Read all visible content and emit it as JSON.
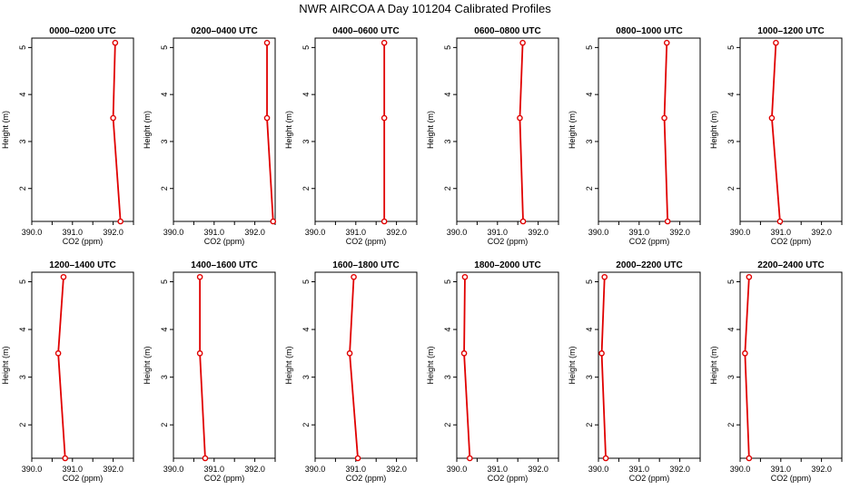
{
  "page": {
    "title": "NWR AIRCOA A  Day 101204  Calibrated Profiles"
  },
  "colors": {
    "series": "#e00000",
    "axis": "#000000",
    "background": "#ffffff"
  },
  "chart_data": [
    {
      "type": "line",
      "title": "0000–0200 UTC",
      "xlabel": "CO2 (ppm)",
      "ylabel": "Height (m)",
      "xlim": [
        390.0,
        392.5
      ],
      "ylim": [
        1.3,
        5.2
      ],
      "xticks": [
        "390.0",
        "391.0",
        "392.0"
      ],
      "yticks": [
        "2",
        "3",
        "4",
        "5"
      ],
      "grid": false,
      "series": [
        {
          "name": "profile",
          "co2": [
            392.18,
            392.0,
            392.05
          ],
          "height": [
            1.3,
            3.5,
            5.1
          ]
        }
      ]
    },
    {
      "type": "line",
      "title": "0200–0400 UTC",
      "xlabel": "CO2 (ppm)",
      "ylabel": "Height (m)",
      "xlim": [
        390.0,
        392.5
      ],
      "ylim": [
        1.3,
        5.2
      ],
      "xticks": [
        "390.0",
        "391.0",
        "392.0"
      ],
      "yticks": [
        "2",
        "3",
        "4",
        "5"
      ],
      "grid": false,
      "series": [
        {
          "name": "profile",
          "co2": [
            392.45,
            392.3,
            392.3
          ],
          "height": [
            1.3,
            3.5,
            5.1
          ]
        }
      ]
    },
    {
      "type": "line",
      "title": "0400–0600 UTC",
      "xlabel": "CO2 (ppm)",
      "ylabel": "Height (m)",
      "xlim": [
        390.0,
        392.5
      ],
      "ylim": [
        1.3,
        5.2
      ],
      "xticks": [
        "390.0",
        "391.0",
        "392.0"
      ],
      "yticks": [
        "2",
        "3",
        "4",
        "5"
      ],
      "grid": false,
      "series": [
        {
          "name": "profile",
          "co2": [
            391.7,
            391.7,
            391.7
          ],
          "height": [
            1.3,
            3.5,
            5.1
          ]
        }
      ]
    },
    {
      "type": "line",
      "title": "0600–0800 UTC",
      "xlabel": "CO2 (ppm)",
      "ylabel": "Height (m)",
      "xlim": [
        390.0,
        392.5
      ],
      "ylim": [
        1.3,
        5.2
      ],
      "xticks": [
        "390.0",
        "391.0",
        "392.0"
      ],
      "yticks": [
        "2",
        "3",
        "4",
        "5"
      ],
      "grid": false,
      "series": [
        {
          "name": "profile",
          "co2": [
            391.63,
            391.55,
            391.62
          ],
          "height": [
            1.3,
            3.5,
            5.1
          ]
        }
      ]
    },
    {
      "type": "line",
      "title": "0800–1000 UTC",
      "xlabel": "CO2 (ppm)",
      "ylabel": "Height (m)",
      "xlim": [
        390.0,
        392.5
      ],
      "ylim": [
        1.3,
        5.2
      ],
      "xticks": [
        "390.0",
        "391.0",
        "392.0"
      ],
      "yticks": [
        "2",
        "3",
        "4",
        "5"
      ],
      "grid": false,
      "series": [
        {
          "name": "profile",
          "co2": [
            391.7,
            391.62,
            391.68
          ],
          "height": [
            1.3,
            3.5,
            5.1
          ]
        }
      ]
    },
    {
      "type": "line",
      "title": "1000–1200 UTC",
      "xlabel": "CO2 (ppm)",
      "ylabel": "Height (m)",
      "xlim": [
        390.0,
        392.5
      ],
      "ylim": [
        1.3,
        5.2
      ],
      "xticks": [
        "390.0",
        "391.0",
        "392.0"
      ],
      "yticks": [
        "2",
        "3",
        "4",
        "5"
      ],
      "grid": false,
      "series": [
        {
          "name": "profile",
          "co2": [
            390.98,
            390.78,
            390.88
          ],
          "height": [
            1.3,
            3.5,
            5.1
          ]
        }
      ]
    },
    {
      "type": "line",
      "title": "1200–1400 UTC",
      "xlabel": "CO2 (ppm)",
      "ylabel": "Height (m)",
      "xlim": [
        390.0,
        392.5
      ],
      "ylim": [
        1.3,
        5.2
      ],
      "xticks": [
        "390.0",
        "391.0",
        "392.0"
      ],
      "yticks": [
        "2",
        "3",
        "4",
        "5"
      ],
      "grid": false,
      "series": [
        {
          "name": "profile",
          "co2": [
            390.82,
            390.65,
            390.78
          ],
          "height": [
            1.3,
            3.5,
            5.1
          ]
        }
      ]
    },
    {
      "type": "line",
      "title": "1400–1600 UTC",
      "xlabel": "CO2 (ppm)",
      "ylabel": "Height (m)",
      "xlim": [
        390.0,
        392.5
      ],
      "ylim": [
        1.3,
        5.2
      ],
      "xticks": [
        "390.0",
        "391.0",
        "392.0"
      ],
      "yticks": [
        "2",
        "3",
        "4",
        "5"
      ],
      "grid": false,
      "series": [
        {
          "name": "profile",
          "co2": [
            390.78,
            390.65,
            390.65
          ],
          "height": [
            1.3,
            3.5,
            5.1
          ]
        }
      ]
    },
    {
      "type": "line",
      "title": "1600–1800 UTC",
      "xlabel": "CO2 (ppm)",
      "ylabel": "Height (m)",
      "xlim": [
        390.0,
        392.5
      ],
      "ylim": [
        1.3,
        5.2
      ],
      "xticks": [
        "390.0",
        "391.0",
        "392.0"
      ],
      "yticks": [
        "2",
        "3",
        "4",
        "5"
      ],
      "grid": false,
      "series": [
        {
          "name": "profile",
          "co2": [
            391.05,
            390.85,
            390.95
          ],
          "height": [
            1.3,
            3.5,
            5.1
          ]
        }
      ]
    },
    {
      "type": "line",
      "title": "1800–2000 UTC",
      "xlabel": "CO2 (ppm)",
      "ylabel": "Height (m)",
      "xlim": [
        390.0,
        392.5
      ],
      "ylim": [
        1.3,
        5.2
      ],
      "xticks": [
        "390.0",
        "391.0",
        "392.0"
      ],
      "yticks": [
        "2",
        "3",
        "4",
        "5"
      ],
      "grid": false,
      "series": [
        {
          "name": "profile",
          "co2": [
            390.32,
            390.18,
            390.2
          ],
          "height": [
            1.3,
            3.5,
            5.1
          ]
        }
      ]
    },
    {
      "type": "line",
      "title": "2000–2200 UTC",
      "xlabel": "CO2 (ppm)",
      "ylabel": "Height (m)",
      "xlim": [
        390.0,
        392.5
      ],
      "ylim": [
        1.3,
        5.2
      ],
      "xticks": [
        "390.0",
        "391.0",
        "392.0"
      ],
      "yticks": [
        "2",
        "3",
        "4",
        "5"
      ],
      "grid": false,
      "series": [
        {
          "name": "profile",
          "co2": [
            390.18,
            390.08,
            390.15
          ],
          "height": [
            1.3,
            3.5,
            5.1
          ]
        }
      ]
    },
    {
      "type": "line",
      "title": "2200–2400 UTC",
      "xlabel": "CO2 (ppm)",
      "ylabel": "Height (m)",
      "xlim": [
        390.0,
        392.5
      ],
      "ylim": [
        1.3,
        5.2
      ],
      "xticks": [
        "390.0",
        "391.0",
        "392.0"
      ],
      "yticks": [
        "2",
        "3",
        "4",
        "5"
      ],
      "grid": false,
      "series": [
        {
          "name": "profile",
          "co2": [
            390.22,
            390.12,
            390.22
          ],
          "height": [
            1.3,
            3.5,
            5.1
          ]
        }
      ]
    }
  ]
}
